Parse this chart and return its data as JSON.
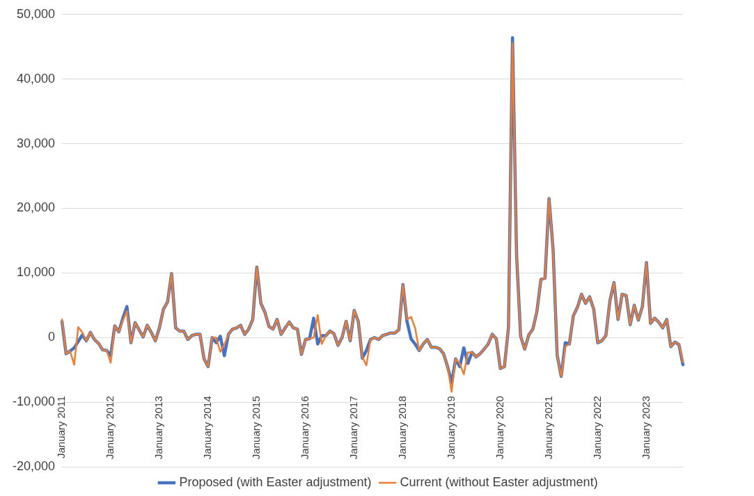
{
  "chart_data": {
    "type": "line",
    "categories": [
      "January 2011",
      null,
      null,
      null,
      null,
      null,
      null,
      null,
      null,
      null,
      null,
      null,
      "January 2012",
      null,
      null,
      null,
      null,
      null,
      null,
      null,
      null,
      null,
      null,
      null,
      "January 2013",
      null,
      null,
      null,
      null,
      null,
      null,
      null,
      null,
      null,
      null,
      null,
      "January 2014",
      null,
      null,
      null,
      null,
      null,
      null,
      null,
      null,
      null,
      null,
      null,
      "January 2015",
      null,
      null,
      null,
      null,
      null,
      null,
      null,
      null,
      null,
      null,
      null,
      "January 2016",
      null,
      null,
      null,
      null,
      null,
      null,
      null,
      null,
      null,
      null,
      null,
      "January 2017",
      null,
      null,
      null,
      null,
      null,
      null,
      null,
      null,
      null,
      null,
      null,
      "January 2018",
      null,
      null,
      null,
      null,
      null,
      null,
      null,
      null,
      null,
      null,
      null,
      "January 2019",
      null,
      null,
      null,
      null,
      null,
      null,
      null,
      null,
      null,
      null,
      null,
      "January 2020",
      null,
      null,
      null,
      null,
      null,
      null,
      null,
      null,
      null,
      null,
      null,
      "January 2021",
      null,
      null,
      null,
      null,
      null,
      null,
      null,
      null,
      null,
      null,
      null,
      "January 2022",
      null,
      null,
      null,
      null,
      null,
      null,
      null,
      null,
      null,
      null,
      null,
      "January 2023",
      null,
      null,
      null,
      null,
      null,
      null,
      null,
      null,
      null
    ],
    "series": [
      {
        "name": "Proposed (with Easter adjustment)",
        "color": "#4472c4",
        "values": [
          2500,
          -2500,
          -2100,
          -1600,
          -600,
          400,
          -500,
          800,
          -300,
          -900,
          -1900,
          -2000,
          -2800,
          1800,
          900,
          3000,
          4800,
          -800,
          2300,
          1200,
          100,
          1900,
          800,
          -500,
          1500,
          4400,
          5500,
          9900,
          1500,
          1000,
          1000,
          -300,
          300,
          500,
          500,
          -3300,
          -4500,
          0,
          -800,
          200,
          -2800,
          500,
          1300,
          1500,
          1900,
          500,
          1300,
          2800,
          10900,
          5300,
          3900,
          1700,
          1300,
          2800,
          500,
          1500,
          2400,
          1500,
          1300,
          -2600,
          -300,
          -200,
          3000,
          -1000,
          300,
          300,
          1000,
          600,
          -1200,
          0,
          2500,
          -500,
          4200,
          2500,
          -3200,
          -2000,
          -300,
          0,
          -300,
          300,
          500,
          700,
          700,
          1200,
          8200,
          2500,
          -200,
          -1000,
          -2000,
          -1000,
          -300,
          -1500,
          -1500,
          -1700,
          -2500,
          -4500,
          -7000,
          -3300,
          -4500,
          -1600,
          -4000,
          -2300,
          -3000,
          -2500,
          -1800,
          -1000,
          500,
          -200,
          -4800,
          -4500,
          1500,
          46400,
          12800,
          200,
          -1800,
          400,
          1300,
          4000,
          9000,
          9200,
          21500,
          13600,
          -2700,
          -6000,
          -800,
          -1000,
          3400,
          4700,
          6700,
          5300,
          6300,
          4400,
          -800,
          -500,
          300,
          5700,
          8500,
          2800,
          6700,
          6500,
          2000,
          5000,
          2700,
          4800,
          11600,
          2200,
          3000,
          2400,
          1500,
          2800,
          -1400,
          -700,
          -1100,
          -4200
        ]
      },
      {
        "name": "Current (without Easter adjustment)",
        "color": "#ed7d31",
        "values": [
          2800,
          -2500,
          -2100,
          -4200,
          1600,
          800,
          -500,
          800,
          -300,
          -900,
          -1900,
          -2000,
          -3900,
          1800,
          900,
          2600,
          4100,
          -800,
          2300,
          1200,
          100,
          1900,
          800,
          -500,
          1500,
          4400,
          5500,
          9900,
          1500,
          1000,
          1000,
          -300,
          300,
          500,
          500,
          -3300,
          -4500,
          0,
          0,
          -2200,
          -1100,
          500,
          1300,
          1500,
          1900,
          500,
          1300,
          2800,
          10900,
          5300,
          3900,
          1700,
          1300,
          2800,
          500,
          1500,
          2400,
          1500,
          1300,
          -2600,
          -300,
          -200,
          0,
          3500,
          -1000,
          300,
          1000,
          600,
          -1200,
          0,
          2500,
          -500,
          4200,
          2500,
          -3000,
          -4300,
          -300,
          0,
          -300,
          300,
          500,
          700,
          700,
          1200,
          8200,
          2800,
          3200,
          1500,
          -2000,
          -1000,
          -300,
          -1500,
          -1500,
          -1700,
          -2500,
          -4500,
          -8400,
          -3300,
          -4000,
          -5700,
          -2300,
          -2300,
          -3000,
          -2500,
          -1800,
          -1000,
          500,
          -200,
          -4800,
          -4500,
          1500,
          45600,
          12800,
          200,
          -1800,
          400,
          1300,
          4000,
          9000,
          9200,
          21500,
          13600,
          -2700,
          -6000,
          -1400,
          -1000,
          3400,
          4700,
          6700,
          5300,
          6300,
          4400,
          -800,
          -500,
          300,
          5700,
          8500,
          2800,
          6700,
          6500,
          2000,
          5000,
          2700,
          4800,
          11600,
          2200,
          3000,
          2400,
          1500,
          2800,
          -1400,
          -700,
          -1100,
          -3800
        ]
      }
    ],
    "ylim": [
      -20000,
      50000
    ],
    "yticks": [
      {
        "value": -20000,
        "label": "-20,000"
      },
      {
        "value": -10000,
        "label": "-10,000"
      },
      0,
      {
        "value": 10000,
        "label": "10,000"
      },
      {
        "value": 20000,
        "label": "20,000"
      },
      {
        "value": 30000,
        "label": "30,000"
      },
      {
        "value": 40000,
        "label": "40,000"
      },
      {
        "value": 50000,
        "label": "50,000"
      }
    ],
    "grid": "y",
    "legend": "bottom",
    "marker": "none",
    "line_style": "solid"
  }
}
